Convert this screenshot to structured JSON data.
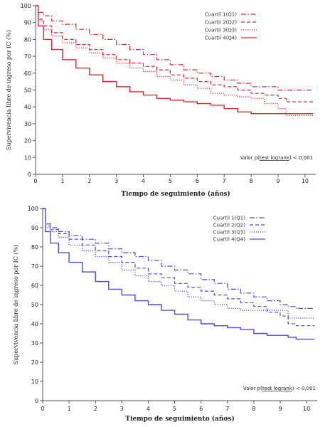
{
  "chart_data": [
    {
      "type": "line",
      "title": "",
      "xlabel": "Tiempo de seguimiento (años)",
      "ylabel": "Supervivencia libre de ingreso por IC (%)",
      "xlim": [
        0,
        10.4
      ],
      "ylim": [
        0,
        100
      ],
      "x_ticks": [
        0,
        1,
        2,
        3,
        4,
        5,
        6,
        7,
        8,
        9,
        10
      ],
      "y_ticks": [
        0,
        10,
        20,
        30,
        40,
        50,
        60,
        70,
        80,
        90,
        100
      ],
      "y_tick_labels": [
        "0",
        "10",
        "20",
        "30",
        "40",
        "50",
        "60",
        "70",
        "80",
        "90",
        "100"
      ],
      "color": "#e8242c",
      "legend_position": "top-right",
      "annotation": {
        "prefix": "Valor p(",
        "underlined": "test logrank",
        "suffix": ") < 0,001"
      },
      "series": [
        {
          "name": "Cuartil 1(Q1)",
          "dash": "dashdot",
          "x": [
            0,
            0.1,
            0.3,
            0.6,
            1,
            1.5,
            2,
            2.5,
            3,
            3.5,
            4,
            4.5,
            5,
            5.5,
            6,
            6.5,
            7,
            7.5,
            8,
            8.5,
            9,
            9.3,
            9.6,
            10.3
          ],
          "y": [
            100,
            96,
            94,
            91,
            89,
            86,
            83,
            80,
            77,
            74,
            71,
            68,
            65,
            62,
            60,
            58,
            56,
            54,
            52,
            52,
            50,
            50,
            50,
            50
          ]
        },
        {
          "name": "Cuartil 2(Q2)",
          "dash": "dashed",
          "x": [
            0,
            0.1,
            0.3,
            0.6,
            1,
            1.5,
            2,
            2.5,
            3,
            3.5,
            4,
            4.5,
            5,
            5.5,
            6,
            6.5,
            7,
            7.5,
            8,
            8.5,
            9,
            9.3,
            9.6,
            10.3
          ],
          "y": [
            100,
            92,
            88,
            84,
            80,
            77,
            74,
            71,
            68,
            66,
            64,
            62,
            59,
            57,
            55,
            53,
            52,
            50,
            48,
            47,
            45,
            43,
            43,
            43
          ]
        },
        {
          "name": "Cuartil 3(Q3)",
          "dash": "dotted",
          "x": [
            0,
            0.1,
            0.3,
            0.6,
            1,
            1.5,
            2,
            2.5,
            3,
            3.5,
            4,
            4.5,
            5,
            5.5,
            6,
            6.5,
            7,
            7.5,
            8,
            8.5,
            9,
            9.3,
            9.6,
            10.3
          ],
          "y": [
            100,
            91,
            86,
            82,
            78,
            75,
            72,
            69,
            66,
            63,
            61,
            58,
            56,
            53,
            51,
            48,
            47,
            46,
            45,
            42,
            39,
            35,
            35,
            35
          ]
        },
        {
          "name": "Cuartil 4(Q4)",
          "dash": "solid",
          "x": [
            0,
            0.1,
            0.3,
            0.6,
            1,
            1.5,
            2,
            2.5,
            3,
            3.5,
            4,
            4.5,
            5,
            5.5,
            6,
            6.5,
            7,
            7.5,
            8,
            8.5,
            9,
            9.3,
            9.6,
            10.3
          ],
          "y": [
            100,
            88,
            80,
            74,
            68,
            63,
            59,
            55,
            52,
            49,
            47,
            45,
            44,
            43,
            42,
            41,
            39,
            37,
            36,
            36,
            36,
            36,
            36,
            36
          ]
        }
      ]
    },
    {
      "type": "line",
      "title": "",
      "xlabel": "Tiempo de seguimiento (años)",
      "ylabel": "Supervivencia libre de ingreso por IC (%)",
      "xlim": [
        0,
        10.4
      ],
      "ylim": [
        0,
        100
      ],
      "x_ticks": [
        0,
        1,
        2,
        3,
        4,
        5,
        6,
        7,
        8,
        9,
        10
      ],
      "y_ticks": [
        0,
        10,
        20,
        30,
        40,
        50,
        60,
        70,
        80,
        90,
        100
      ],
      "y_tick_labels": [
        "0",
        "10",
        "20",
        "30",
        "40",
        "50",
        "60",
        "70",
        "80",
        "90",
        "100"
      ],
      "color": "#4a4ae0",
      "legend_position": "top-right",
      "annotation": {
        "prefix": "Valor p(",
        "underlined": "test logrank",
        "suffix": ") < 0,001"
      },
      "series": [
        {
          "name": "Cuartil 1(Q1)",
          "dash": "dashdot",
          "x": [
            0,
            0.1,
            0.3,
            0.6,
            1,
            1.5,
            2,
            2.5,
            3,
            3.5,
            4,
            4.5,
            5,
            5.5,
            6,
            6.5,
            7,
            7.5,
            8,
            8.5,
            9,
            9.3,
            9.6,
            10.3
          ],
          "y": [
            100,
            92,
            90,
            88,
            86,
            84,
            82,
            79,
            77,
            75,
            73,
            70,
            68,
            66,
            63,
            61,
            58,
            56,
            54,
            52,
            50,
            49,
            48,
            48
          ]
        },
        {
          "name": "Cuartil 2(Q2)",
          "dash": "dashed",
          "x": [
            0,
            0.1,
            0.3,
            0.6,
            1,
            1.5,
            2,
            2.5,
            3,
            3.5,
            4,
            4.5,
            5,
            5.5,
            6,
            6.5,
            7,
            7.5,
            8,
            8.5,
            9,
            9.3,
            9.6,
            10.3
          ],
          "y": [
            100,
            91,
            89,
            87,
            84,
            81,
            78,
            75,
            72,
            69,
            66,
            64,
            61,
            59,
            57,
            55,
            53,
            51,
            49,
            46,
            44,
            40,
            39,
            39
          ]
        },
        {
          "name": "Cuartil 3(Q3)",
          "dash": "dotted",
          "x": [
            0,
            0.1,
            0.3,
            0.6,
            1,
            1.5,
            2,
            2.5,
            3,
            3.5,
            4,
            4.5,
            5,
            5.5,
            6,
            6.5,
            7,
            7.5,
            8,
            8.5,
            9,
            9.3,
            9.6,
            10.3
          ],
          "y": [
            100,
            90,
            88,
            85,
            81,
            78,
            75,
            72,
            68,
            65,
            62,
            60,
            57,
            54,
            52,
            50,
            48,
            47,
            47,
            47,
            47,
            43,
            43,
            43
          ]
        },
        {
          "name": "Cuartil 4(Q4)",
          "dash": "solid",
          "x": [
            0,
            0.1,
            0.3,
            0.6,
            1,
            1.5,
            2,
            2.5,
            3,
            3.5,
            4,
            4.5,
            5,
            5.5,
            6,
            6.5,
            7,
            7.5,
            8,
            8.5,
            9,
            9.3,
            9.6,
            10.3
          ],
          "y": [
            100,
            88,
            82,
            77,
            72,
            67,
            62,
            58,
            55,
            52,
            50,
            47,
            45,
            42,
            40,
            39,
            38,
            37,
            35,
            34,
            34,
            33,
            32,
            32
          ]
        }
      ]
    }
  ]
}
